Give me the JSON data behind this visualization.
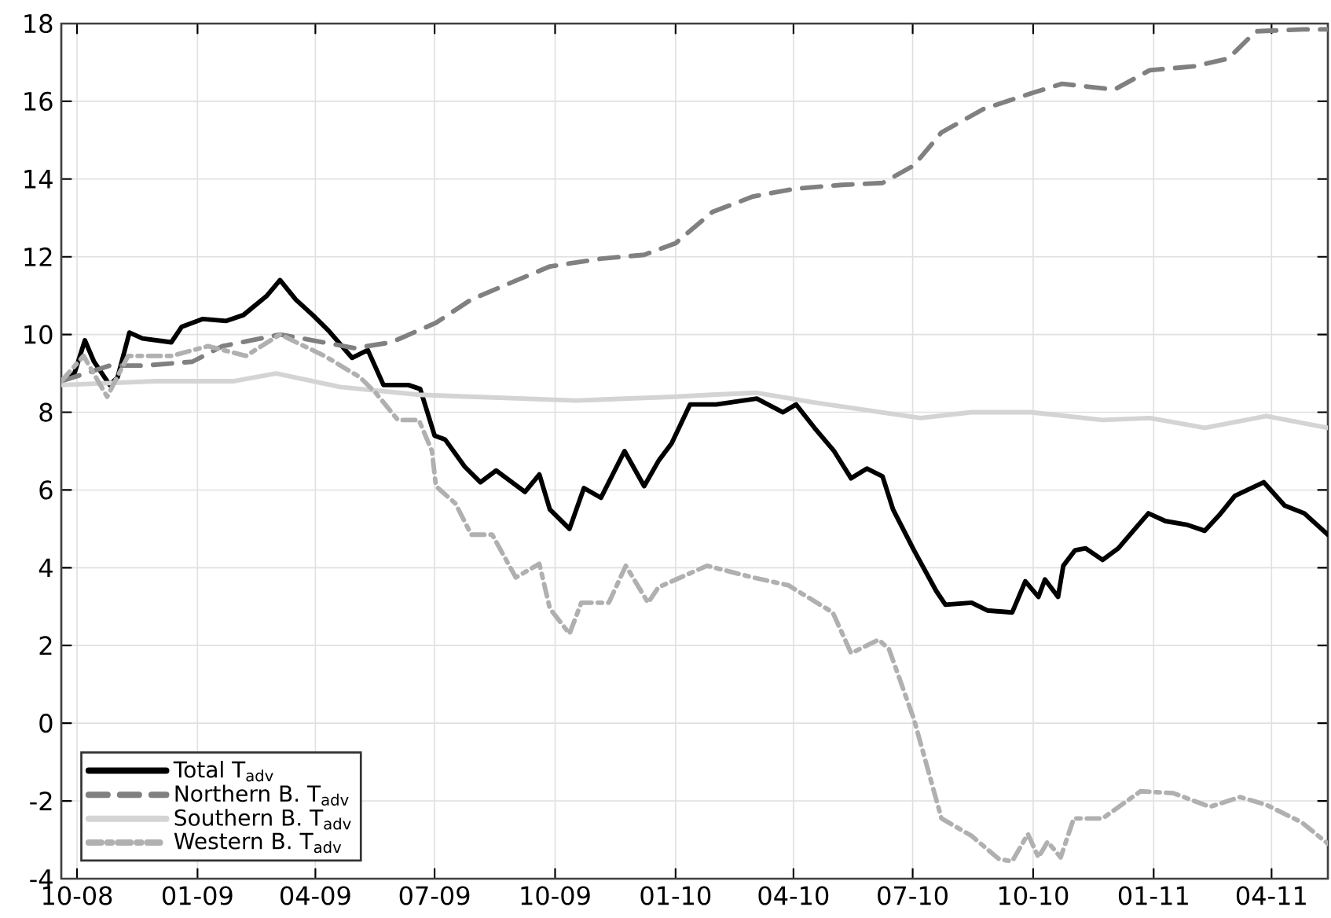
{
  "chart_data": {
    "type": "line",
    "xlim": [
      "2008-09-19",
      "2011-05-14"
    ],
    "xticks": [
      {
        "value": "2008-10-01",
        "label": "10-08"
      },
      {
        "value": "2009-01-01",
        "label": "01-09"
      },
      {
        "value": "2009-04-01",
        "label": "04-09"
      },
      {
        "value": "2009-07-01",
        "label": "07-09"
      },
      {
        "value": "2009-10-01",
        "label": "10-09"
      },
      {
        "value": "2010-01-01",
        "label": "01-10"
      },
      {
        "value": "2010-04-01",
        "label": "04-10"
      },
      {
        "value": "2010-07-01",
        "label": "07-10"
      },
      {
        "value": "2010-10-01",
        "label": "10-10"
      },
      {
        "value": "2011-01-01",
        "label": "01-11"
      },
      {
        "value": "2011-04-01",
        "label": "04-11"
      }
    ],
    "ylim": [
      -4,
      18
    ],
    "yticks": [
      -4,
      -2,
      0,
      2,
      4,
      6,
      8,
      10,
      12,
      14,
      16,
      18
    ],
    "grid": true,
    "legend": "bottom left",
    "marker": "none",
    "series": [
      {
        "name": "Total T$_{adv}$",
        "color": "#000000",
        "line_style": "solid",
        "x": [
          "2008-09-19",
          "2008-09-29",
          "2008-10-07",
          "2008-10-14",
          "2008-10-26",
          "2008-11-01",
          "2008-11-10",
          "2008-11-20",
          "2008-12-12",
          "2008-12-20",
          "2009-01-05",
          "2009-01-23",
          "2009-02-05",
          "2009-02-23",
          "2009-03-05",
          "2009-03-17",
          "2009-03-30",
          "2009-04-11",
          "2009-04-29",
          "2009-05-11",
          "2009-05-23",
          "2009-06-11",
          "2009-06-20",
          "2009-07-01",
          "2009-07-09",
          "2009-07-24",
          "2009-08-05",
          "2009-08-17",
          "2009-09-08",
          "2009-09-19",
          "2009-09-27",
          "2009-10-12",
          "2009-10-23",
          "2009-11-05",
          "2009-11-23",
          "2009-12-08",
          "2009-12-19",
          "2009-12-29",
          "2010-01-12",
          "2010-02-01",
          "2010-03-04",
          "2010-03-24",
          "2010-04-03",
          "2010-04-17",
          "2010-05-02",
          "2010-05-15",
          "2010-05-27",
          "2010-06-08",
          "2010-06-16",
          "2010-07-02",
          "2010-07-19",
          "2010-07-26",
          "2010-08-15",
          "2010-08-27",
          "2010-09-15",
          "2010-09-25",
          "2010-10-05",
          "2010-10-10",
          "2010-10-20",
          "2010-10-24",
          "2010-11-02",
          "2010-11-10",
          "2010-11-23",
          "2010-12-05",
          "2010-12-19",
          "2010-12-28",
          "2011-01-10",
          "2011-01-27",
          "2011-02-09",
          "2011-02-20",
          "2011-03-04",
          "2011-03-26",
          "2011-04-11",
          "2011-04-26",
          "2011-05-14"
        ],
        "values": [
          8.8,
          9.0,
          9.85,
          9.3,
          8.7,
          8.9,
          10.05,
          9.9,
          9.8,
          10.2,
          10.4,
          10.35,
          10.5,
          11.0,
          11.4,
          10.9,
          10.5,
          10.1,
          9.4,
          9.6,
          8.7,
          8.7,
          8.6,
          7.4,
          7.3,
          6.6,
          6.2,
          6.5,
          5.95,
          6.4,
          5.5,
          5.0,
          6.05,
          5.8,
          7.0,
          6.1,
          6.75,
          7.2,
          8.2,
          8.2,
          8.35,
          8.0,
          8.2,
          7.6,
          7.0,
          6.3,
          6.55,
          6.35,
          5.5,
          4.45,
          3.4,
          3.05,
          3.1,
          2.9,
          2.85,
          3.65,
          3.25,
          3.7,
          3.25,
          4.05,
          4.45,
          4.5,
          4.2,
          4.5,
          5.05,
          5.4,
          5.2,
          5.1,
          4.95,
          5.35,
          5.85,
          6.2,
          5.6,
          5.4,
          4.85
        ]
      },
      {
        "name": "Northern B. T$_{adv}$",
        "color": "#808080",
        "line_style": "dashed",
        "x": [
          "2008-09-19",
          "2008-10-26",
          "2008-11-21",
          "2008-12-28",
          "2009-01-20",
          "2009-03-05",
          "2009-03-30",
          "2009-05-01",
          "2009-05-29",
          "2009-07-02",
          "2009-07-29",
          "2009-08-26",
          "2009-09-27",
          "2009-11-05",
          "2009-12-08",
          "2010-01-01",
          "2010-01-29",
          "2010-03-01",
          "2010-04-02",
          "2010-05-08",
          "2010-06-08",
          "2010-07-02",
          "2010-07-23",
          "2010-08-24",
          "2010-09-29",
          "2010-10-23",
          "2010-12-02",
          "2010-12-29",
          "2011-02-01",
          "2011-02-27",
          "2011-03-20",
          "2011-04-25",
          "2011-05-14"
        ],
        "values": [
          8.8,
          9.2,
          9.2,
          9.3,
          9.7,
          10.0,
          9.85,
          9.65,
          9.8,
          10.3,
          10.9,
          11.3,
          11.75,
          11.95,
          12.05,
          12.35,
          13.15,
          13.55,
          13.75,
          13.85,
          13.9,
          14.35,
          15.2,
          15.8,
          16.2,
          16.45,
          16.3,
          16.8,
          16.9,
          17.1,
          17.8,
          17.85,
          17.85
        ]
      },
      {
        "name": "Southern B. T$_{adv}$",
        "color": "#d4d4d4",
        "line_style": "solid",
        "x": [
          "2008-09-19",
          "2008-11-30",
          "2009-01-29",
          "2009-03-02",
          "2009-04-20",
          "2009-06-19",
          "2009-07-29",
          "2009-10-17",
          "2010-01-01",
          "2010-01-29",
          "2010-03-04",
          "2010-04-17",
          "2010-07-07",
          "2010-08-15",
          "2010-09-29",
          "2010-11-23",
          "2010-12-29",
          "2011-02-09",
          "2011-03-28",
          "2011-05-14"
        ],
        "values": [
          8.7,
          8.8,
          8.8,
          9.0,
          8.65,
          8.45,
          8.4,
          8.3,
          8.4,
          8.45,
          8.5,
          8.25,
          7.85,
          8.0,
          8.0,
          7.8,
          7.85,
          7.6,
          7.9,
          7.6
        ]
      },
      {
        "name": "Western B. T$_{adv}$",
        "color": "#b0b0b0",
        "line_style": "dashdot",
        "x": [
          "2008-09-19",
          "2008-10-06",
          "2008-10-24",
          "2008-11-09",
          "2008-12-12",
          "2009-01-09",
          "2009-02-07",
          "2009-03-05",
          "2009-04-08",
          "2009-05-05",
          "2009-05-17",
          "2009-06-03",
          "2009-06-19",
          "2009-06-29",
          "2009-07-02",
          "2009-07-17",
          "2009-07-29",
          "2009-08-14",
          "2009-09-01",
          "2009-09-19",
          "2009-09-27",
          "2009-10-12",
          "2009-10-21",
          "2009-11-11",
          "2009-11-24",
          "2009-12-11",
          "2009-12-19",
          "2010-01-25",
          "2010-03-01",
          "2010-03-28",
          "2010-05-01",
          "2010-05-15",
          "2010-06-05",
          "2010-06-13",
          "2010-07-02",
          "2010-07-23",
          "2010-08-15",
          "2010-09-05",
          "2010-09-15",
          "2010-09-27",
          "2010-10-05",
          "2010-10-12",
          "2010-10-22",
          "2010-11-01",
          "2010-11-23",
          "2010-12-22",
          "2011-01-16",
          "2011-02-13",
          "2011-03-08",
          "2011-03-28",
          "2011-04-24",
          "2011-05-14"
        ],
        "values": [
          8.8,
          9.45,
          8.4,
          9.45,
          9.45,
          9.7,
          9.45,
          10.0,
          9.45,
          8.9,
          8.5,
          7.8,
          7.8,
          7.0,
          6.1,
          5.65,
          4.85,
          4.85,
          3.75,
          4.1,
          2.95,
          2.3,
          3.1,
          3.1,
          4.05,
          3.1,
          3.5,
          4.05,
          3.75,
          3.55,
          2.85,
          1.8,
          2.15,
          1.9,
          0.1,
          -2.45,
          -2.9,
          -3.5,
          -3.55,
          -2.85,
          -3.45,
          -3.05,
          -3.45,
          -2.45,
          -2.45,
          -1.75,
          -1.8,
          -2.15,
          -1.9,
          -2.1,
          -2.55,
          -3.1
        ]
      }
    ]
  }
}
